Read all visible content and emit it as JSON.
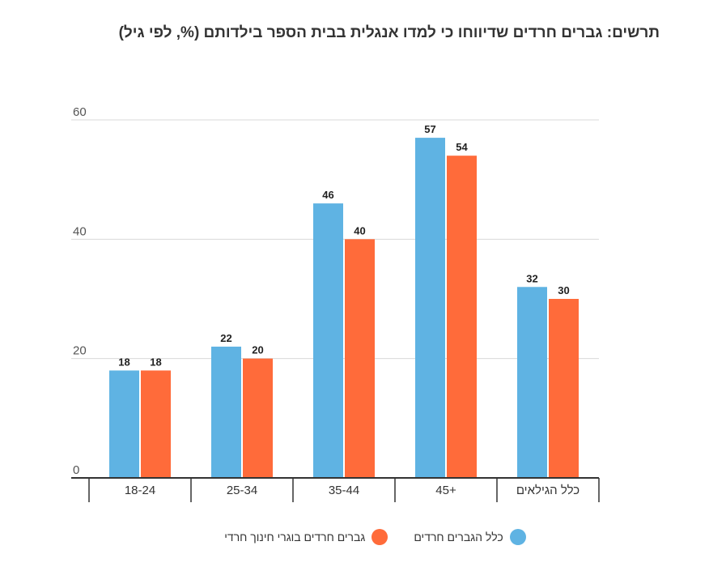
{
  "chart_data": {
    "type": "bar",
    "title": "תרשים: גברים חרדים שדיווחו כי למדו אנגלית בבית הספר בילדותם (%, לפי גיל)",
    "categories": [
      "18-24",
      "25-34",
      "35-44",
      "45+",
      "כלל הגילאים"
    ],
    "series": [
      {
        "name": "כלל הגברים חרדים",
        "color": "#5fb3e3",
        "values": [
          18,
          22,
          46,
          57,
          32
        ]
      },
      {
        "name": "גברים חרדים בוגרי חינוך חרדי",
        "color": "#ff6b3a",
        "values": [
          18,
          20,
          40,
          54,
          30
        ]
      }
    ],
    "ylim": [
      0,
      60
    ],
    "yticks": [
      "0",
      "20",
      "40",
      "60"
    ],
    "grid": true,
    "legend_position": "bottom"
  }
}
